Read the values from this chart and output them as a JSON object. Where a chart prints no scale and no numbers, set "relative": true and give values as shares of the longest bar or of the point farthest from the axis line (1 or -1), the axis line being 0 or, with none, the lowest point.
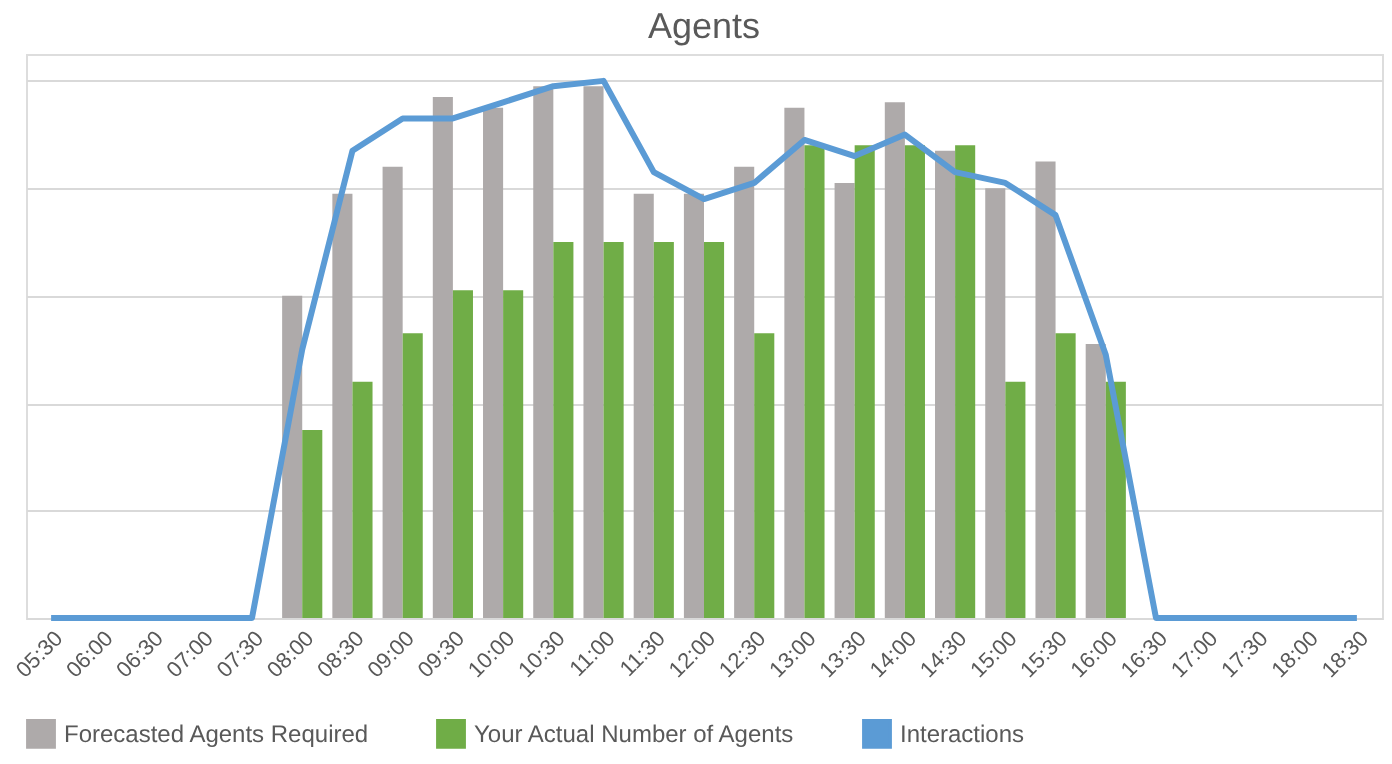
{
  "chart_data": {
    "type": "bar",
    "title": "Agents",
    "relative": true,
    "grid": "y",
    "legend": "bottom",
    "categories": [
      "05:30",
      "06:00",
      "06:30",
      "07:00",
      "07:30",
      "08:00",
      "08:30",
      "09:00",
      "09:30",
      "10:00",
      "10:30",
      "11:00",
      "11:30",
      "12:00",
      "12:30",
      "13:00",
      "13:30",
      "14:00",
      "14:30",
      "15:00",
      "15:30",
      "16:00",
      "16:30",
      "17:00",
      "17:30",
      "18:00",
      "18:30"
    ],
    "series": [
      {
        "name": "Forecasted Agents Required",
        "color": "#aeaaaa",
        "values": [
          null,
          null,
          null,
          null,
          null,
          0.6,
          0.79,
          0.84,
          0.97,
          0.95,
          0.99,
          0.99,
          0.79,
          0.79,
          0.84,
          0.95,
          0.81,
          0.96,
          0.87,
          0.8,
          0.85,
          0.51,
          null,
          null,
          null,
          null,
          null
        ]
      },
      {
        "name": "Your Actual Number of Agents",
        "color": "#70ad47",
        "values": [
          null,
          null,
          null,
          null,
          null,
          0.35,
          0.44,
          0.53,
          0.61,
          0.61,
          0.7,
          0.7,
          0.7,
          0.7,
          0.53,
          0.88,
          0.88,
          0.88,
          0.88,
          0.44,
          0.53,
          0.44,
          null,
          null,
          null,
          null,
          null
        ]
      },
      {
        "name": "Interactions",
        "type": "line",
        "color": "#5b9bd5",
        "values": [
          0,
          0,
          0,
          0,
          0,
          0.5,
          0.87,
          0.93,
          0.93,
          0.96,
          0.99,
          1.0,
          0.83,
          0.78,
          0.81,
          0.89,
          0.86,
          0.9,
          0.83,
          0.81,
          0.75,
          0.49,
          0,
          0,
          0,
          0,
          0
        ]
      }
    ]
  }
}
